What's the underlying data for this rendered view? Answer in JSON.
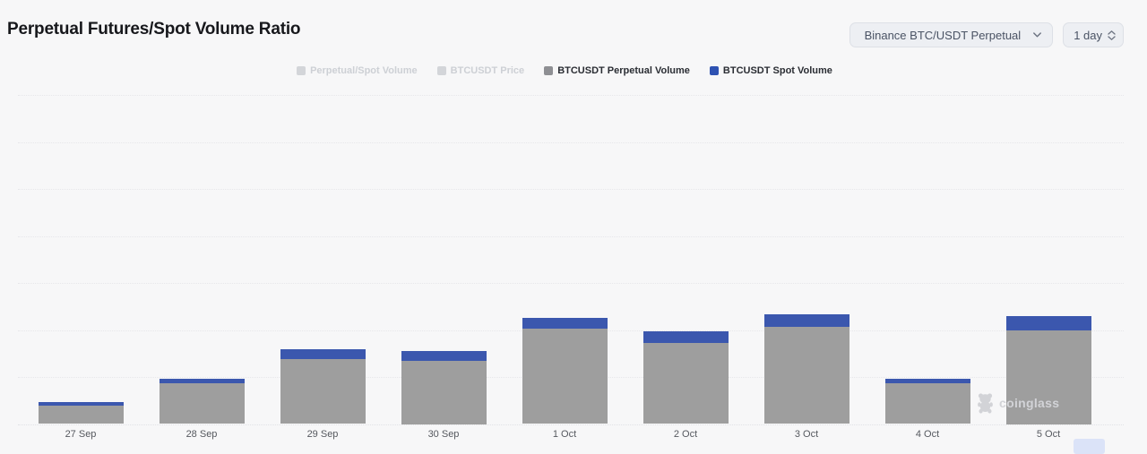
{
  "header": {
    "title": "Perpetual Futures/Spot Volume Ratio",
    "symbol_select": {
      "value": "Binance BTC/USDT Perpetual",
      "icon": "chevron-down-icon"
    },
    "interval_select": {
      "value": "1 day",
      "icon": "up-down-stepper-icon"
    }
  },
  "legend": {
    "items": [
      {
        "label": "Perpetual/Spot Volume",
        "enabled": false,
        "swatch_color": "#d3d5d9"
      },
      {
        "label": "BTCUSDT Price",
        "enabled": false,
        "swatch_color": "#d3d5d9"
      },
      {
        "label": "BTCUSDT Perpetual Volume",
        "enabled": true,
        "swatch_color": "#8e8f93"
      },
      {
        "label": "BTCUSDT Spot Volume",
        "enabled": true,
        "swatch_color": "#2e52b2"
      }
    ]
  },
  "chart_data": {
    "type": "bar",
    "stacked": true,
    "title": "Perpetual Futures/Spot Volume Ratio",
    "categories": [
      "27 Sep",
      "28 Sep",
      "29 Sep",
      "30 Sep",
      "1 Oct",
      "2 Oct",
      "3 Oct",
      "4 Oct",
      "5 Oct"
    ],
    "series": [
      {
        "name": "BTCUSDT Perpetual Volume",
        "color": "#9e9e9e",
        "values": [
          0.39,
          0.86,
          1.39,
          1.35,
          2.02,
          1.73,
          2.07,
          0.86,
          2.0
        ]
      },
      {
        "name": "BTCUSDT Spot Volume",
        "color": "#3b57ae",
        "values": [
          0.07,
          0.11,
          0.21,
          0.2,
          0.23,
          0.25,
          0.27,
          0.1,
          0.3
        ]
      }
    ],
    "xlabel": "",
    "ylabel": "",
    "y_unit": "relative units (y-axis tick labels not visible; 1.0 = one dotted gridline interval)",
    "ylim": [
      0,
      8
    ],
    "grid": "horizontal dotted lines, no visible y tick labels",
    "legend_position": "top-center",
    "disabled_series_in_legend": [
      "Perpetual/Spot Volume",
      "BTCUSDT Price"
    ]
  },
  "watermark": {
    "text": "coinglass",
    "icon": "coinglass-bear-icon"
  },
  "colors": {
    "background": "#f7f7f8",
    "title_text": "#17181c",
    "control_background": "#edeff3",
    "control_border": "#dde0e6",
    "control_text": "#4a5364",
    "gridline": "#e7e7ea",
    "x_label_text": "#56595f",
    "bar_gray": "#9e9e9e",
    "bar_blue": "#3b57ae",
    "legend_disabled": "#cdd0d5",
    "scroll_thumb": "#dbe3f8"
  }
}
